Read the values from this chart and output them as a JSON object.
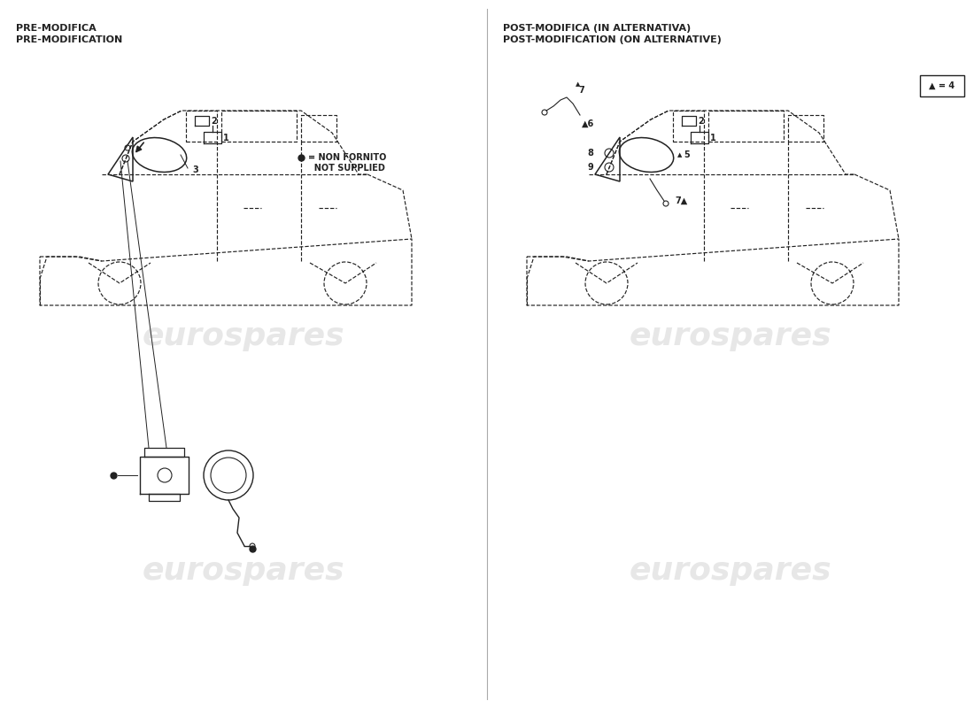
{
  "bg_color": "#ffffff",
  "line_color": "#222222",
  "wm_color": "#d8d8d8",
  "divider_color": "#999999",
  "left_title_line1": "PRE-MODIFICA",
  "left_title_line2": "PRE-MODIFICATION",
  "right_title_line1": "POST-MODIFICA (IN ALTERNATIVA)",
  "right_title_line2": "POST-MODIFICATION (ON ALTERNATIVE)",
  "legend_dot_text": "= NON FORNITO",
  "legend_not_text": "  NOT SUPPLIED",
  "box_label": "▲ = 4",
  "title_fs": 8,
  "label_fs": 7,
  "wm_fs": 26,
  "wm_text": "eurospares"
}
